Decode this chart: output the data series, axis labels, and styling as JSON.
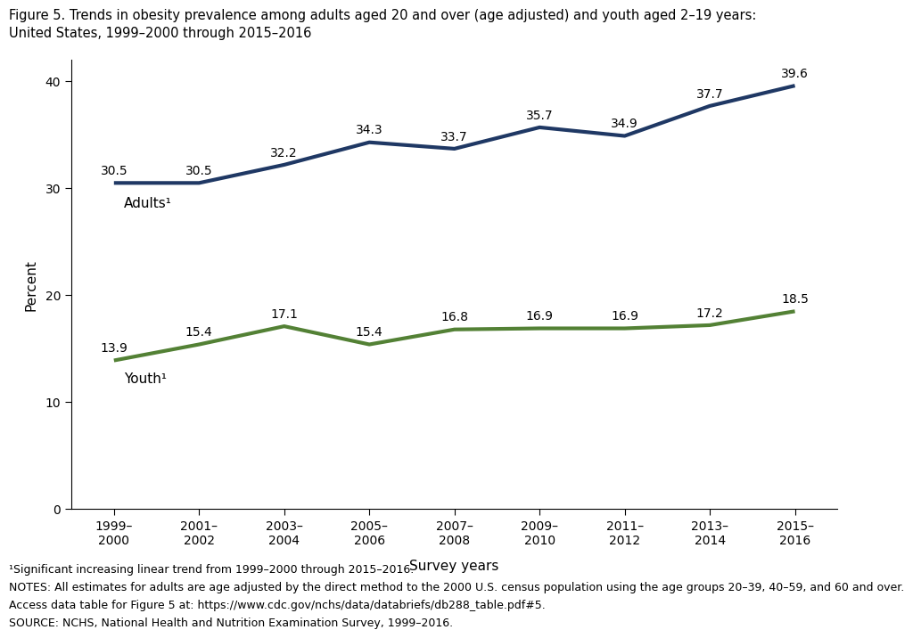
{
  "title_line1": "Figure 5. Trends in obesity prevalence among adults aged 20 and over (age adjusted) and youth aged 2–19 years:",
  "title_line2": "United States, 1999–2000 through 2015–2016",
  "x_labels": [
    "1999–\n2000",
    "2001–\n2002",
    "2003–\n2004",
    "2005–\n2006",
    "2007–\n2008",
    "2009–\n2010",
    "2011–\n2012",
    "2013–\n2014",
    "2015–\n2016"
  ],
  "x_positions": [
    0,
    1,
    2,
    3,
    4,
    5,
    6,
    7,
    8
  ],
  "adults_values": [
    30.5,
    30.5,
    32.2,
    34.3,
    33.7,
    35.7,
    34.9,
    37.7,
    39.6
  ],
  "youth_values": [
    13.9,
    15.4,
    17.1,
    15.4,
    16.8,
    16.9,
    16.9,
    17.2,
    18.5
  ],
  "adults_color": "#1f3864",
  "youth_color": "#538135",
  "adults_label": "Adults¹",
  "youth_label": "Youth¹",
  "xlabel": "Survey years",
  "ylabel": "Percent",
  "ylim": [
    0,
    42
  ],
  "yticks": [
    0,
    10,
    20,
    30,
    40
  ],
  "line_width": 3.0,
  "footnote1": "¹Significant increasing linear trend from 1999–2000 through 2015–2016.",
  "footnote2": "NOTES: All estimates for adults are age adjusted by the direct method to the 2000 U.S. census population using the age groups 20–39, 40–59, and 60 and over.",
  "footnote3": "Access data table for Figure 5 at: https://www.cdc.gov/nchs/data/databriefs/db288_table.pdf#5.",
  "footnote4": "SOURCE: NCHS, National Health and Nutrition Examination Survey, 1999–2016.",
  "data_label_fontsize": 10,
  "axis_label_fontsize": 11,
  "tick_fontsize": 10,
  "title_fontsize": 10.5,
  "legend_fontsize": 11,
  "footnote_fontsize": 9
}
